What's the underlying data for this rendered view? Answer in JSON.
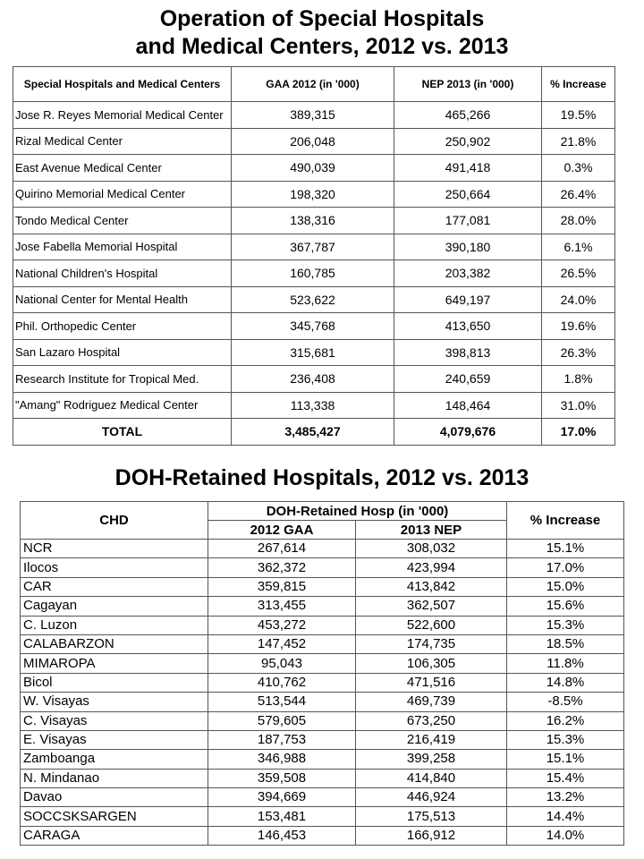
{
  "section1": {
    "title_lines": [
      "Operation of Special Hospitals",
      "and Medical Centers, 2012 vs. 2013"
    ],
    "header": [
      "Special Hospitals and Medical Centers",
      "GAA 2012  (in '000)",
      "NEP 2013  (in '000)",
      "% Increase"
    ],
    "rows": [
      [
        "Jose R. Reyes Memorial Medical Center",
        "389,315",
        "465,266",
        "19.5%"
      ],
      [
        "Rizal Medical Center",
        "206,048",
        "250,902",
        "21.8%"
      ],
      [
        "East Avenue Medical Center",
        "490,039",
        "491,418",
        "0.3%"
      ],
      [
        "Quirino Memorial Medical Center",
        "198,320",
        "250,664",
        "26.4%"
      ],
      [
        "Tondo Medical Center",
        "138,316",
        "177,081",
        "28.0%"
      ],
      [
        "Jose Fabella Memorial Hospital",
        "367,787",
        "390,180",
        "6.1%"
      ],
      [
        "National Children's Hospital",
        "160,785",
        "203,382",
        "26.5%"
      ],
      [
        "National Center for Mental Health",
        "523,622",
        "649,197",
        "24.0%"
      ],
      [
        "Phil. Orthopedic Center",
        "345,768",
        "413,650",
        "19.6%"
      ],
      [
        "San Lazaro Hospital",
        "315,681",
        "398,813",
        "26.3%"
      ],
      [
        "Research Institute for Tropical Med.",
        "236,408",
        "240,659",
        "1.8%"
      ],
      [
        "\"Amang\" Rodriguez Medical Center",
        "113,338",
        "148,464",
        "31.0%"
      ]
    ],
    "total": [
      "TOTAL",
      "3,485,427",
      "4,079,676",
      "17.0%"
    ]
  },
  "section2": {
    "title": "DOH-Retained Hospitals, 2012 vs. 2013",
    "header": {
      "chd": "CHD",
      "group": "DOH-Retained Hosp (in '000)",
      "col1": "2012 GAA",
      "col2": "2013 NEP",
      "increase": "% Increase"
    },
    "rows": [
      [
        "NCR",
        "267,614",
        "308,032",
        "15.1%"
      ],
      [
        "Ilocos",
        "362,372",
        "423,994",
        "17.0%"
      ],
      [
        "CAR",
        "359,815",
        "413,842",
        "15.0%"
      ],
      [
        "Cagayan",
        "313,455",
        "362,507",
        "15.6%"
      ],
      [
        "C. Luzon",
        "453,272",
        "522,600",
        "15.3%"
      ],
      [
        "CALABARZON",
        "147,452",
        "174,735",
        "18.5%"
      ],
      [
        "MIMAROPA",
        "95,043",
        "106,305",
        "11.8%"
      ],
      [
        "Bicol",
        "410,762",
        "471,516",
        "14.8%"
      ],
      [
        "W. Visayas",
        "513,544",
        "469,739",
        "-8.5%"
      ],
      [
        "C. Visayas",
        "579,605",
        "673,250",
        "16.2%"
      ],
      [
        "E. Visayas",
        "187,753",
        "216,419",
        "15.3%"
      ],
      [
        "Zamboanga",
        "346,988",
        "399,258",
        "15.1%"
      ],
      [
        "N. Mindanao",
        "359,508",
        "414,840",
        "15.4%"
      ],
      [
        "Davao",
        "394,669",
        "446,924",
        "13.2%"
      ],
      [
        "SOCCSKSARGEN",
        "153,481",
        "175,513",
        "14.4%"
      ],
      [
        "CARAGA",
        "146,453",
        "166,912",
        "14.0%"
      ]
    ]
  }
}
